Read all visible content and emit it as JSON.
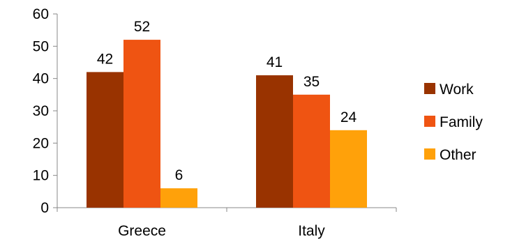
{
  "chart_data": {
    "type": "bar",
    "title": "",
    "xlabel": "",
    "ylabel": "",
    "categories": [
      "Greece",
      "Italy"
    ],
    "series": [
      {
        "name": "Work",
        "values": [
          42,
          41
        ],
        "color": "#993300"
      },
      {
        "name": "Family",
        "values": [
          52,
          35
        ],
        "color": "#ef5412"
      },
      {
        "name": "Other",
        "values": [
          6,
          24
        ],
        "color": "#ffa10a"
      }
    ],
    "ylim": [
      0,
      60
    ],
    "yticks": [
      0,
      10,
      20,
      30,
      40,
      50,
      60
    ],
    "ytick_labels": [
      "0",
      "10",
      "20",
      "30",
      "40",
      "50",
      "60"
    ],
    "data_labels": [
      [
        "42",
        "41"
      ],
      [
        "52",
        "35"
      ],
      [
        "6",
        "24"
      ]
    ],
    "grid": false,
    "legend_position": "right"
  }
}
